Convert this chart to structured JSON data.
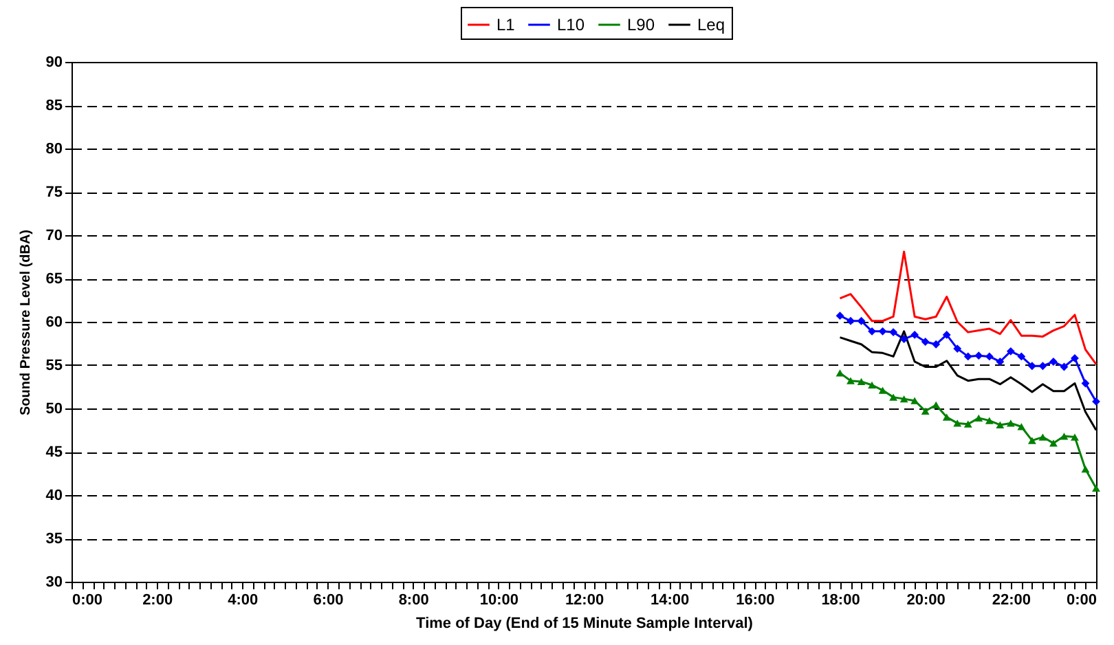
{
  "chart_data": {
    "type": "line",
    "xlabel": "Time of Day (End of 15 Minute Sample Interval)",
    "ylabel": "Sound Pressure Level (dBA)",
    "x": [
      18,
      18.25,
      18.5,
      18.75,
      19,
      19.25,
      19.5,
      19.75,
      20,
      20.25,
      20.5,
      20.75,
      21,
      21.25,
      21.5,
      21.75,
      22,
      22.25,
      22.5,
      22.75,
      23,
      23.25,
      23.5,
      23.75,
      24
    ],
    "series": [
      {
        "name": "L1",
        "color": "#ff0000",
        "marker": "none",
        "values": [
          62.7,
          63.2,
          61.7,
          60.1,
          60.1,
          60.6,
          68.1,
          60.6,
          60.3,
          60.6,
          62.9,
          60.0,
          58.8,
          59.0,
          59.2,
          58.6,
          60.2,
          58.4,
          58.4,
          58.3,
          59.0,
          59.5,
          60.8,
          56.8,
          55.1
        ]
      },
      {
        "name": "L10",
        "color": "#0000ff",
        "marker": "diamond",
        "values": [
          60.7,
          60.1,
          60.1,
          58.9,
          58.9,
          58.8,
          58.0,
          58.5,
          57.7,
          57.4,
          58.5,
          56.9,
          56.0,
          56.1,
          56.0,
          55.4,
          56.6,
          56.0,
          54.9,
          54.9,
          55.4,
          54.8,
          55.8,
          52.9,
          50.8
        ]
      },
      {
        "name": "L90",
        "color": "#008000",
        "marker": "triangle",
        "values": [
          54.1,
          53.2,
          53.1,
          52.7,
          52.1,
          51.3,
          51.1,
          50.9,
          49.7,
          50.4,
          49.0,
          48.3,
          48.2,
          48.9,
          48.6,
          48.1,
          48.3,
          47.9,
          46.3,
          46.7,
          46.0,
          46.8,
          46.7,
          43.0,
          40.8
        ]
      },
      {
        "name": "Leq",
        "color": "#000000",
        "marker": "none",
        "values": [
          58.2,
          57.8,
          57.4,
          56.5,
          56.4,
          56.0,
          58.9,
          55.4,
          54.8,
          54.8,
          55.5,
          53.8,
          53.2,
          53.4,
          53.4,
          52.8,
          53.6,
          52.8,
          51.9,
          52.8,
          52.0,
          52.0,
          52.9,
          49.6,
          47.5
        ]
      }
    ],
    "xlim": [
      0,
      24
    ],
    "xticks": [
      {
        "value": 0,
        "label": "0:00"
      },
      {
        "value": 0.25,
        "label": null
      },
      {
        "value": 0.5,
        "label": null
      },
      {
        "value": 0.75,
        "label": null
      },
      {
        "value": 1,
        "label": null
      },
      {
        "value": 1.25,
        "label": null
      },
      {
        "value": 1.5,
        "label": null
      },
      {
        "value": 1.75,
        "label": null
      },
      {
        "value": 2,
        "label": "2:00"
      },
      {
        "value": 2.25,
        "label": null
      },
      {
        "value": 2.5,
        "label": null
      },
      {
        "value": 2.75,
        "label": null
      },
      {
        "value": 3,
        "label": null
      },
      {
        "value": 3.25,
        "label": null
      },
      {
        "value": 3.5,
        "label": null
      },
      {
        "value": 3.75,
        "label": null
      },
      {
        "value": 4,
        "label": "4:00"
      },
      {
        "value": 4.25,
        "label": null
      },
      {
        "value": 4.5,
        "label": null
      },
      {
        "value": 4.75,
        "label": null
      },
      {
        "value": 5,
        "label": null
      },
      {
        "value": 5.25,
        "label": null
      },
      {
        "value": 5.5,
        "label": null
      },
      {
        "value": 5.75,
        "label": null
      },
      {
        "value": 6,
        "label": "6:00"
      },
      {
        "value": 6.25,
        "label": null
      },
      {
        "value": 6.5,
        "label": null
      },
      {
        "value": 6.75,
        "label": null
      },
      {
        "value": 7,
        "label": null
      },
      {
        "value": 7.25,
        "label": null
      },
      {
        "value": 7.5,
        "label": null
      },
      {
        "value": 7.75,
        "label": null
      },
      {
        "value": 8,
        "label": "8:00"
      },
      {
        "value": 8.25,
        "label": null
      },
      {
        "value": 8.5,
        "label": null
      },
      {
        "value": 8.75,
        "label": null
      },
      {
        "value": 9,
        "label": null
      },
      {
        "value": 9.25,
        "label": null
      },
      {
        "value": 9.5,
        "label": null
      },
      {
        "value": 9.75,
        "label": null
      },
      {
        "value": 10,
        "label": "10:00"
      },
      {
        "value": 10.25,
        "label": null
      },
      {
        "value": 10.5,
        "label": null
      },
      {
        "value": 10.75,
        "label": null
      },
      {
        "value": 11,
        "label": null
      },
      {
        "value": 11.25,
        "label": null
      },
      {
        "value": 11.5,
        "label": null
      },
      {
        "value": 11.75,
        "label": null
      },
      {
        "value": 12,
        "label": "12:00"
      },
      {
        "value": 12.25,
        "label": null
      },
      {
        "value": 12.5,
        "label": null
      },
      {
        "value": 12.75,
        "label": null
      },
      {
        "value": 13,
        "label": null
      },
      {
        "value": 13.25,
        "label": null
      },
      {
        "value": 13.5,
        "label": null
      },
      {
        "value": 13.75,
        "label": null
      },
      {
        "value": 14,
        "label": "14:00"
      },
      {
        "value": 14.25,
        "label": null
      },
      {
        "value": 14.5,
        "label": null
      },
      {
        "value": 14.75,
        "label": null
      },
      {
        "value": 15,
        "label": null
      },
      {
        "value": 15.25,
        "label": null
      },
      {
        "value": 15.5,
        "label": null
      },
      {
        "value": 15.75,
        "label": null
      },
      {
        "value": 16,
        "label": "16:00"
      },
      {
        "value": 16.25,
        "label": null
      },
      {
        "value": 16.5,
        "label": null
      },
      {
        "value": 16.75,
        "label": null
      },
      {
        "value": 17,
        "label": null
      },
      {
        "value": 17.25,
        "label": null
      },
      {
        "value": 17.5,
        "label": null
      },
      {
        "value": 17.75,
        "label": null
      },
      {
        "value": 18,
        "label": "18:00"
      },
      {
        "value": 18.25,
        "label": null
      },
      {
        "value": 18.5,
        "label": null
      },
      {
        "value": 18.75,
        "label": null
      },
      {
        "value": 19,
        "label": null
      },
      {
        "value": 19.25,
        "label": null
      },
      {
        "value": 19.5,
        "label": null
      },
      {
        "value": 19.75,
        "label": null
      },
      {
        "value": 20,
        "label": "20:00"
      },
      {
        "value": 20.25,
        "label": null
      },
      {
        "value": 20.5,
        "label": null
      },
      {
        "value": 20.75,
        "label": null
      },
      {
        "value": 21,
        "label": null
      },
      {
        "value": 21.25,
        "label": null
      },
      {
        "value": 21.5,
        "label": null
      },
      {
        "value": 21.75,
        "label": null
      },
      {
        "value": 22,
        "label": "22:00"
      },
      {
        "value": 22.25,
        "label": null
      },
      {
        "value": 22.5,
        "label": null
      },
      {
        "value": 22.75,
        "label": null
      },
      {
        "value": 23,
        "label": null
      },
      {
        "value": 23.25,
        "label": null
      },
      {
        "value": 23.5,
        "label": null
      },
      {
        "value": 23.75,
        "label": null
      },
      {
        "value": 24,
        "label": "0:00"
      }
    ],
    "ylim": [
      30,
      90
    ],
    "yticks": [
      30,
      35,
      40,
      45,
      50,
      55,
      60,
      65,
      70,
      75,
      80,
      85,
      90
    ],
    "grid": "y",
    "legend": "top",
    "line_style": "solid"
  }
}
